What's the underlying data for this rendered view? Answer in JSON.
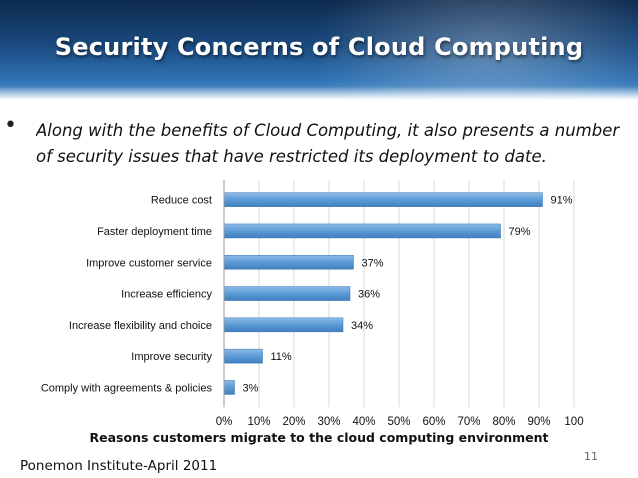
{
  "slide": {
    "title": "Security Concerns of Cloud Computing",
    "bullet_lines": [
      "Along with the benefits of Cloud Computing, it also presents a number",
      "of security issues that have restricted its deployment to date."
    ],
    "source": "Ponemon Institute-April 2011",
    "page_number": "11"
  },
  "colors": {
    "bar": "#5b9bd5",
    "grid": "#d9d9d9"
  },
  "chart_data": {
    "type": "bar",
    "orientation": "horizontal",
    "title": "",
    "xlabel": "Reasons customers migrate to the cloud computing environment",
    "ylabel": "",
    "categories": [
      "Reduce cost",
      "Faster deployment time",
      "Improve customer service",
      "Increase efficiency",
      "Increase flexibility and choice",
      "Improve security",
      "Comply with agreements & policies"
    ],
    "values": [
      91,
      79,
      37,
      36,
      34,
      11,
      3
    ],
    "value_labels": [
      "91%",
      "79%",
      "37%",
      "36%",
      "34%",
      "11%",
      "3%"
    ],
    "xlim": [
      0,
      100
    ],
    "x_ticks": [
      "0%",
      "10%",
      "20%",
      "30%",
      "40%",
      "50%",
      "60%",
      "70%",
      "80%",
      "90%",
      "100"
    ],
    "grid": true,
    "legend": "none"
  }
}
